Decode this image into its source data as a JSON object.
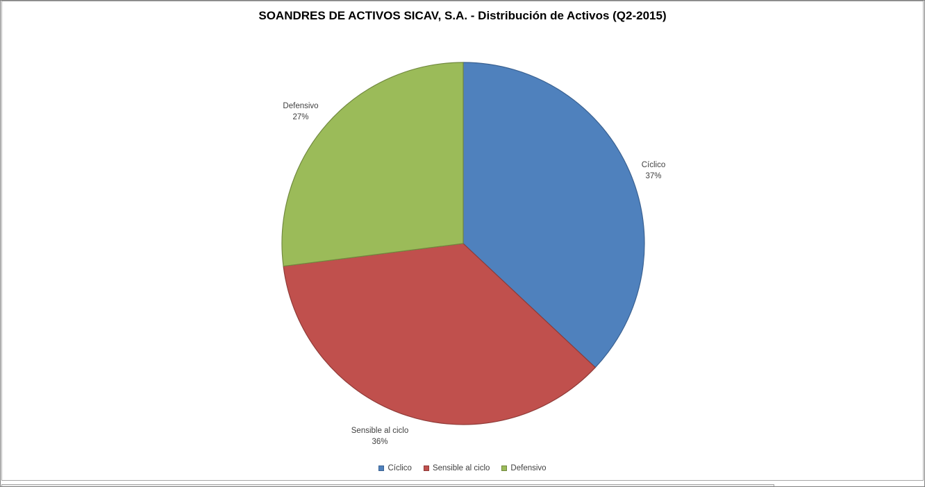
{
  "chart_data": {
    "type": "pie",
    "title": "SOANDRES DE ACTIVOS SICAV, S.A. - Distribución de Activos (Q2-2015)",
    "categories": [
      "Cíclico",
      "Sensible al ciclo",
      "Defensivo"
    ],
    "values": [
      37,
      36,
      27
    ],
    "value_unit": "percent",
    "percent_labels": [
      "37%",
      "36%",
      "27%"
    ],
    "colors": [
      "#4F81BD",
      "#C0504D",
      "#9BBB59"
    ],
    "edge_colors": [
      "#3A6191",
      "#8F3B38",
      "#71893F"
    ],
    "start_angle_deg": 0,
    "direction": "clockwise",
    "legend_position": "bottom",
    "legend_labels": [
      "Cíclico",
      "Sensible al ciclo",
      "Defensivo"
    ]
  }
}
